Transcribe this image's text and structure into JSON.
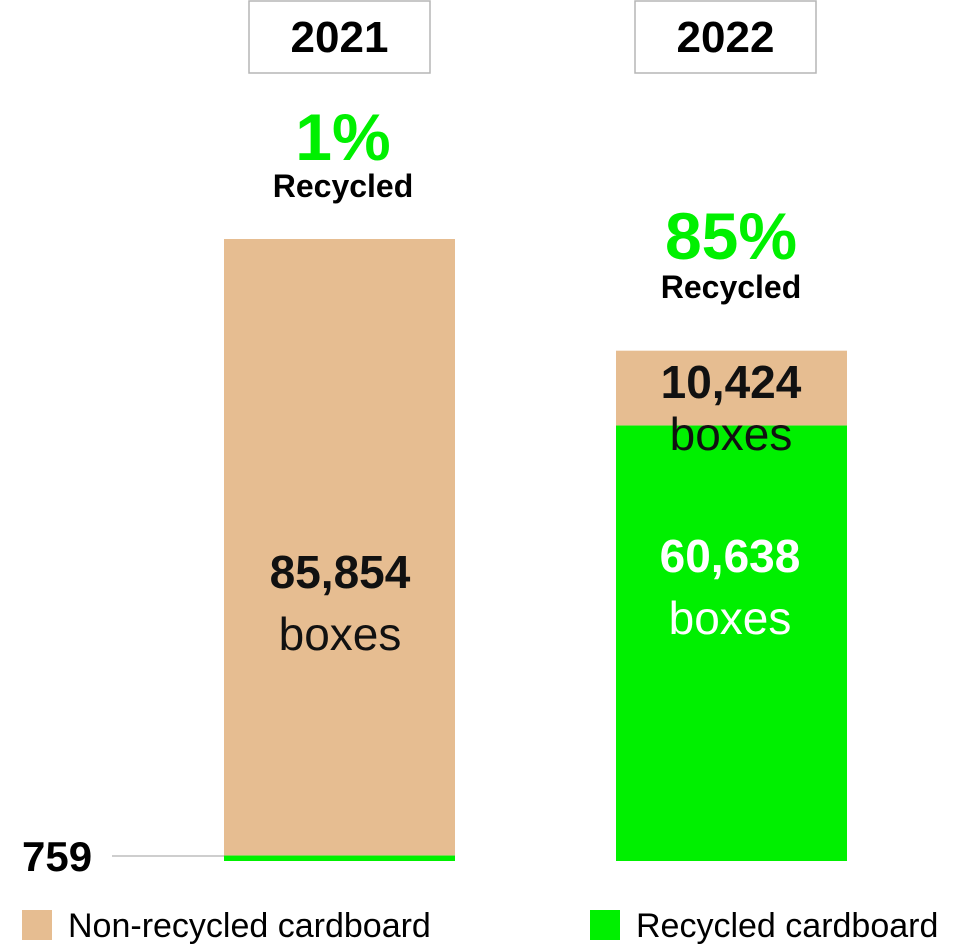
{
  "chart_data": {
    "type": "bar",
    "stacked": true,
    "categories": [
      "2021",
      "2022"
    ],
    "series": [
      {
        "name": "Recycled cardboard",
        "values": [
          759,
          60638
        ],
        "color": "#00f000"
      },
      {
        "name": "Non-recycled cardboard",
        "values": [
          85854,
          10424
        ],
        "color": "#e6bd91"
      }
    ],
    "percent_recycled": [
      "1%",
      "85%"
    ],
    "percent_label": "Recycled",
    "unit_label": "boxes",
    "value_labels": {
      "2021": {
        "non_recycled": "85,854",
        "recycled": "759"
      },
      "2022": {
        "non_recycled": "10,424",
        "recycled": "60,638"
      }
    },
    "legend": {
      "placement": "bottom",
      "items": [
        {
          "label": "Non-recycled cardboard",
          "color": "#e6bd91"
        },
        {
          "label": "Recycled cardboard",
          "color": "#00f000"
        }
      ]
    },
    "grid": false,
    "ylim": [
      0,
      86613
    ]
  }
}
